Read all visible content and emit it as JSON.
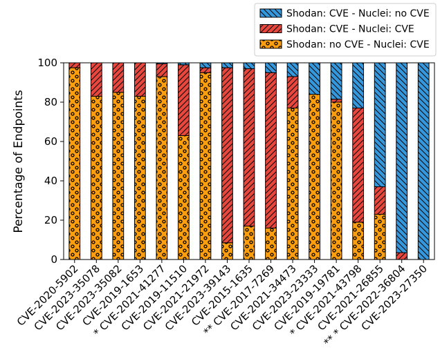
{
  "chart_data": {
    "type": "bar",
    "stacked": true,
    "ylabel": "Percentage of Endpoints",
    "xlabel": "",
    "ylim": [
      0,
      100
    ],
    "yticks": [
      0,
      20,
      40,
      60,
      80,
      100
    ],
    "grid": false,
    "legend_position": "top-right",
    "categories": [
      "CVE-2020-5902",
      "CVE-2023-35078",
      "CVE-2023-35082",
      "CVE-2019-1653",
      "* CVE-2021-41277",
      "CVE-2019-11510",
      "CVE-2021-21972",
      "CVE-2023-39143",
      "CVE-2015-1635",
      "** CVE-2017-7269",
      "CVE-2021-34473",
      "CVE-2023-23333",
      "CVE-2019-19781",
      "* CVE-2021-43798",
      "CVE-2021-26855",
      "** * CVE-2022-36804",
      "CVE-2023-27350"
    ],
    "series": [
      {
        "name": "Shodan: no CVE - Nuclei: CVE",
        "color": "#ff9f0f",
        "pattern": "circles",
        "values": [
          97.5,
          83,
          85,
          83,
          93,
          63,
          95,
          8.5,
          17,
          16,
          77,
          84,
          80,
          19,
          23,
          0,
          0
        ]
      },
      {
        "name": "Shodan: CVE - Nuclei: CVE",
        "color": "#e8473d",
        "pattern": "forward-hatch",
        "values": [
          2.5,
          17,
          15,
          17,
          6.5,
          36,
          2.5,
          89,
          80,
          79,
          16,
          0,
          1.5,
          58,
          14,
          3.5,
          0
        ]
      },
      {
        "name": "Shodan: CVE - Nuclei: no CVE",
        "color": "#3598dc",
        "pattern": "back-hatch",
        "values": [
          0,
          0,
          0,
          0,
          0.5,
          1,
          2.5,
          2.5,
          3,
          5,
          7,
          16,
          18.5,
          23,
          63,
          96.5,
          100
        ]
      }
    ],
    "legend_order": [
      "Shodan: CVE - Nuclei: no CVE",
      "Shodan: CVE - Nuclei: CVE",
      "Shodan: no CVE - Nuclei: CVE"
    ]
  }
}
